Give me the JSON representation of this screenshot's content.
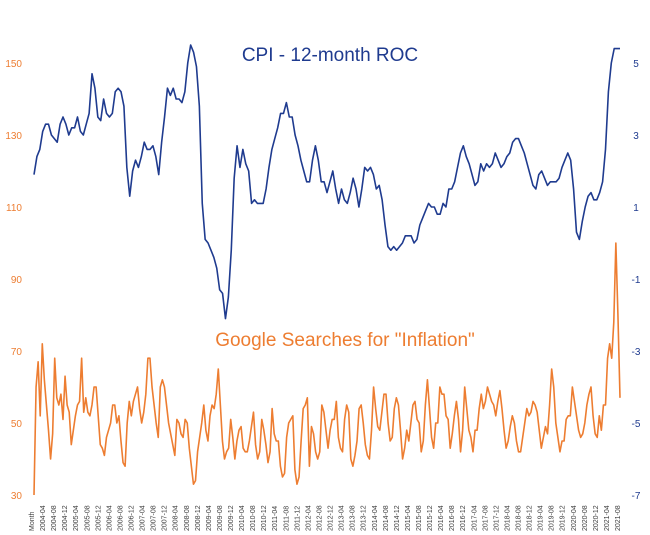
{
  "chart_data": {
    "type": "line",
    "annotations": [
      {
        "text": "CPI - 12-month ROC",
        "color": "#1F3B8F"
      },
      {
        "text": "Google Searches for \"Inflation\"",
        "color": "#ED7D31"
      }
    ],
    "left_axis": {
      "ylim": [
        30,
        155
      ],
      "ticks": [
        "150",
        "130",
        "110",
        "90",
        "70",
        "50",
        "30"
      ],
      "tick_values": [
        150,
        130,
        110,
        90,
        70,
        50,
        30
      ]
    },
    "right_axis": {
      "ylim": [
        -7,
        5.5
      ],
      "ticks": [
        "5",
        "3",
        "1",
        "-1",
        "-3",
        "-5",
        "-7"
      ],
      "tick_values": [
        5,
        3,
        1,
        -1,
        -3,
        -5,
        -7
      ]
    },
    "x_ticks": [
      "Month",
      "2004-04",
      "2004-08",
      "2004-12",
      "2005-04",
      "2005-08",
      "2005-12",
      "2006-04",
      "2006-08",
      "2006-12",
      "2007-04",
      "2007-08",
      "2007-12",
      "2008-04",
      "2008-08",
      "2008-12",
      "2009-04",
      "2009-08",
      "2009-12",
      "2010-04",
      "2010-08",
      "2010-12",
      "2011-04",
      "2011-08",
      "2011-12",
      "2012-04",
      "2012-08",
      "2012-12",
      "2013-04",
      "2013-08",
      "2013-12",
      "2014-04",
      "2014-08",
      "2014-12",
      "2015-04",
      "2015-08",
      "2015-12",
      "2016-04",
      "2016-08",
      "2016-12",
      "2017-04",
      "2017-08",
      "2017-12",
      "2018-04",
      "2018-08",
      "2018-12",
      "2019-04",
      "2019-08",
      "2019-12",
      "2020-04",
      "2020-08",
      "2020-12",
      "2021-04",
      "2021-08"
    ],
    "series": [
      {
        "name": "CPI - 12-month ROC",
        "axis": "right",
        "color": "#1F3B8F",
        "x_start": "2004-01",
        "values": [
          1.9,
          2.4,
          2.6,
          3.1,
          3.3,
          3.3,
          3.0,
          2.9,
          2.8,
          3.3,
          3.5,
          3.3,
          3.0,
          3.2,
          3.2,
          3.5,
          3.1,
          3.0,
          3.3,
          3.6,
          4.7,
          4.3,
          3.5,
          3.4,
          4.0,
          3.6,
          3.5,
          3.6,
          4.2,
          4.3,
          4.2,
          3.8,
          2.1,
          1.3,
          2.0,
          2.3,
          2.1,
          2.4,
          2.8,
          2.6,
          2.6,
          2.7,
          2.4,
          1.9,
          2.8,
          3.5,
          4.3,
          4.1,
          4.3,
          4.0,
          4.0,
          3.9,
          4.2,
          5.0,
          5.5,
          5.3,
          4.9,
          3.8,
          1.1,
          0.1,
          0.0,
          -0.2,
          -0.4,
          -0.7,
          -1.3,
          -1.4,
          -2.1,
          -1.5,
          -0.2,
          1.8,
          2.7,
          2.1,
          2.6,
          2.2,
          2.0,
          1.1,
          1.2,
          1.1,
          1.1,
          1.1,
          1.5,
          2.1,
          2.6,
          2.9,
          3.2,
          3.6,
          3.6,
          3.9,
          3.5,
          3.5,
          3.0,
          2.7,
          2.3,
          2.0,
          1.7,
          1.7,
          2.3,
          2.7,
          2.3,
          1.7,
          1.7,
          1.4,
          1.7,
          2.0,
          1.5,
          1.1,
          1.5,
          1.2,
          1.1,
          1.4,
          1.8,
          1.5,
          1.0,
          1.5,
          2.1,
          2.0,
          2.1,
          1.9,
          1.5,
          1.6,
          1.2,
          0.5,
          -0.1,
          -0.2,
          -0.1,
          -0.2,
          -0.1,
          0.0,
          0.2,
          0.2,
          0.2,
          0.0,
          0.1,
          0.5,
          0.7,
          0.9,
          1.1,
          1.0,
          1.0,
          0.8,
          0.8,
          1.1,
          1.0,
          1.5,
          1.5,
          1.7,
          2.1,
          2.5,
          2.7,
          2.4,
          2.2,
          1.9,
          1.6,
          1.7,
          2.2,
          2.0,
          2.2,
          2.1,
          2.2,
          2.5,
          2.3,
          2.1,
          2.2,
          2.4,
          2.5,
          2.8,
          2.9,
          2.9,
          2.7,
          2.5,
          2.2,
          1.9,
          1.6,
          1.5,
          1.9,
          2.0,
          1.8,
          1.6,
          1.7,
          1.7,
          1.7,
          1.8,
          2.1,
          2.3,
          2.5,
          2.3,
          1.5,
          0.3,
          0.1,
          0.6,
          1.0,
          1.3,
          1.4,
          1.2,
          1.2,
          1.4,
          1.7,
          2.6,
          4.2,
          5.0,
          5.4,
          5.4,
          5.4
        ]
      },
      {
        "name": "Google Searches for \"Inflation\"",
        "axis": "left",
        "color": "#ED7D31",
        "x_start": "2004-01",
        "values": [
          30,
          60,
          67,
          52,
          72,
          62,
          55,
          48,
          40,
          47,
          68,
          57,
          55,
          58,
          51,
          63,
          55,
          53,
          44,
          48,
          52,
          55,
          56,
          68,
          53,
          57,
          53,
          52,
          55,
          60,
          60,
          52,
          44,
          43,
          41,
          46,
          48,
          50,
          55,
          55,
          50,
          52,
          45,
          39,
          38,
          50,
          56,
          52,
          56,
          58,
          60,
          54,
          50,
          53,
          58,
          68,
          68,
          60,
          55,
          50,
          46,
          60,
          62,
          60,
          55,
          50,
          47,
          44,
          41,
          51,
          50,
          47,
          46,
          51,
          50,
          43,
          38,
          33,
          34,
          42,
          46,
          50,
          55,
          48,
          45,
          52,
          55,
          54,
          58,
          65,
          55,
          45,
          40,
          42,
          43,
          51,
          46,
          40,
          45,
          48,
          49,
          43,
          42,
          42,
          45,
          49,
          53,
          44,
          40,
          42,
          51,
          48,
          44,
          39,
          42,
          54,
          47,
          45,
          45,
          38,
          35,
          36,
          46,
          50,
          51,
          52,
          37,
          33,
          35,
          45,
          54,
          55,
          57,
          38,
          49,
          47,
          42,
          40,
          42,
          55,
          53,
          48,
          43,
          48,
          51,
          51,
          56,
          46,
          43,
          42,
          51,
          55,
          53,
          40,
          38,
          41,
          45,
          54,
          55,
          50,
          44,
          41,
          40,
          48,
          60,
          54,
          49,
          48,
          53,
          58,
          58,
          50,
          45,
          46,
          54,
          57,
          55,
          48,
          40,
          43,
          48,
          45,
          50,
          55,
          56,
          51,
          50,
          42,
          45,
          55,
          62,
          54,
          46,
          43,
          50,
          50,
          60,
          58,
          58,
          52,
          51,
          43,
          47,
          52,
          56,
          51,
          42,
          48,
          60,
          54,
          48,
          46,
          42,
          48,
          48,
          54,
          58,
          54,
          56,
          60,
          58,
          56,
          55,
          52,
          56,
          59,
          54,
          48,
          43,
          45,
          49,
          52,
          50,
          45,
          42,
          42,
          46,
          50,
          54,
          52,
          53,
          56,
          55,
          53,
          48,
          43,
          46,
          49,
          47,
          55,
          65,
          60,
          50,
          46,
          42,
          45,
          45,
          51,
          52,
          52,
          60,
          56,
          52,
          48,
          46,
          47,
          50,
          55,
          58,
          60,
          52,
          47,
          46,
          52,
          48,
          55,
          55,
          68,
          72,
          68,
          78,
          100,
          80,
          57
        ]
      }
    ]
  }
}
